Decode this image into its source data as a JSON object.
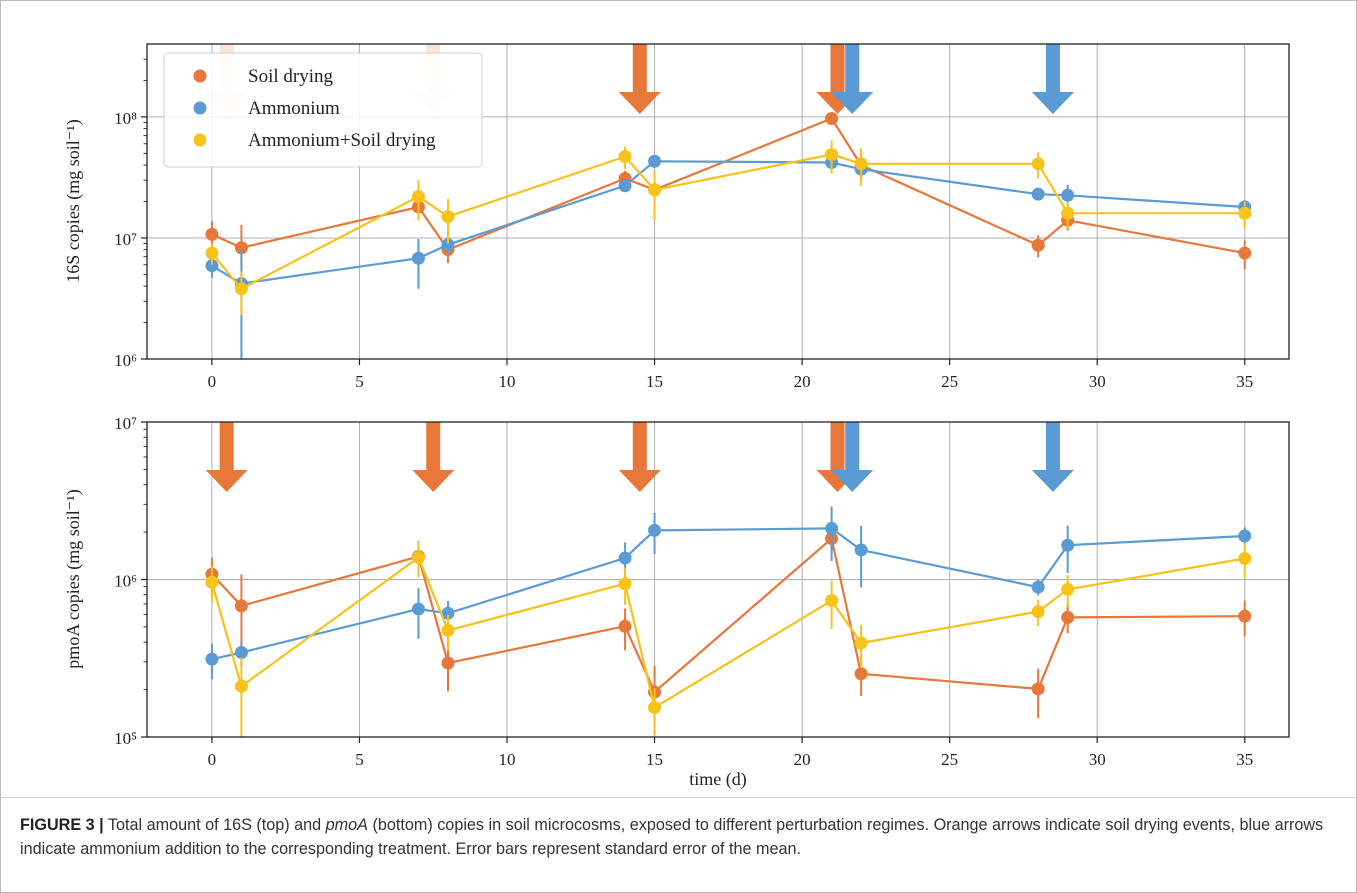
{
  "colors": {
    "soil_drying": "#e8773a",
    "ammonium": "#5b9bd5",
    "ammonium_soil_drying": "#f7c21a",
    "arrow_orange": "#e8773a",
    "arrow_blue": "#5b9bd5",
    "grid": "#b0b0b0"
  },
  "caption": {
    "label": "FIGURE 3 |",
    "text_1": " Total amount of 16S (top) and ",
    "italic_1": "pmoA",
    "text_2": " (bottom) copies in soil microcosms, exposed to different perturbation regimes. Orange arrows indicate soil drying events, blue arrows indicate ammonium addition to the corresponding treatment. Error bars represent standard error of the mean."
  },
  "chart_data": [
    {
      "type": "line",
      "panel": "top",
      "ylabel": "16S copies (mg soil⁻¹)",
      "xlabel": "",
      "y_scale": "log",
      "ylim": [
        1000000,
        400000000
      ],
      "xlim": [
        -2.2,
        36.5
      ],
      "x_ticks": [
        0,
        5,
        10,
        15,
        20,
        25,
        30,
        35
      ],
      "y_ticks": [
        1000000,
        10000000,
        100000000
      ],
      "y_tick_labels": [
        "10⁶",
        "10⁷",
        "10⁸"
      ],
      "grid": true,
      "legend_position": "top-left",
      "arrows": [
        {
          "x": 0.5,
          "color": "orange",
          "faded": true
        },
        {
          "x": 7.5,
          "color": "orange",
          "faded": true
        },
        {
          "x": 14.5,
          "color": "orange",
          "faded": false
        },
        {
          "x": 21.2,
          "color": "orange",
          "faded": false
        },
        {
          "x": 21.7,
          "color": "blue",
          "faded": false
        },
        {
          "x": 28.5,
          "color": "blue",
          "faded": false
        }
      ],
      "series": [
        {
          "name": "Soil drying",
          "color_key": "soil_drying",
          "x": [
            0,
            1,
            7,
            8,
            14,
            15,
            21,
            22,
            28,
            29,
            35
          ],
          "y": [
            10700000,
            8300000,
            18000000,
            8000000,
            31000000,
            25000000,
            97000000,
            40000000,
            8700000,
            14000000,
            7500000
          ],
          "err": [
            3000000,
            4500000,
            4000000,
            1800000,
            5000000,
            5000000,
            8000000,
            10000000,
            1800000,
            2500000,
            2000000
          ]
        },
        {
          "name": "Ammonium",
          "color_key": "ammonium",
          "x": [
            0,
            1,
            7,
            8,
            14,
            15,
            21,
            22,
            28,
            29,
            35
          ],
          "y": [
            5900000,
            4200000,
            6800000,
            8800000,
            27000000,
            43000000,
            42000000,
            37000000,
            23000000,
            22500000,
            18000000
          ],
          "err": [
            1200000,
            3800000,
            3000000,
            1500000,
            3000000,
            4000000,
            5000000,
            7000000,
            2000000,
            5000000,
            2500000
          ]
        },
        {
          "name": "Ammonium+Soil drying",
          "color_key": "ammonium_soil_drying",
          "x": [
            0,
            1,
            7,
            8,
            14,
            15,
            21,
            22,
            28,
            29,
            35
          ],
          "y": [
            7500000,
            3800000,
            22000000,
            15000000,
            47000000,
            25000000,
            49000000,
            41000000,
            41000000,
            16000000,
            16000000
          ],
          "err": [
            1500000,
            1500000,
            8000000,
            6000000,
            10000000,
            11000000,
            15000000,
            14000000,
            10000000,
            4000000,
            4000000
          ]
        }
      ]
    },
    {
      "type": "line",
      "panel": "bottom",
      "ylabel": "pmoA copies (mg soil⁻¹)",
      "xlabel": "time (d)",
      "y_scale": "log",
      "ylim": [
        100000,
        10000000
      ],
      "xlim": [
        -2.2,
        36.5
      ],
      "x_ticks": [
        0,
        5,
        10,
        15,
        20,
        25,
        30,
        35
      ],
      "x_tick_labels": [
        "0",
        "5",
        "10",
        "15",
        "20",
        "25",
        "30",
        "35"
      ],
      "y_ticks": [
        100000,
        1000000,
        10000000
      ],
      "y_tick_labels": [
        "10⁵",
        "10⁶",
        "10⁷"
      ],
      "grid": true,
      "arrows": [
        {
          "x": 0.5,
          "color": "orange",
          "faded": false
        },
        {
          "x": 7.5,
          "color": "orange",
          "faded": false
        },
        {
          "x": 14.5,
          "color": "orange",
          "faded": false
        },
        {
          "x": 21.2,
          "color": "orange",
          "faded": false
        },
        {
          "x": 21.7,
          "color": "blue",
          "faded": false
        },
        {
          "x": 28.5,
          "color": "blue",
          "faded": false
        }
      ],
      "series": [
        {
          "name": "Soil drying",
          "color_key": "soil_drying",
          "x": [
            0,
            1,
            7,
            8,
            14,
            15,
            21,
            22,
            28,
            29,
            35
          ],
          "y": [
            1080000,
            680000,
            1400000,
            295000,
            505000,
            193000,
            1820000,
            252000,
            202000,
            575000,
            585000
          ],
          "err": [
            300000,
            400000,
            350000,
            100000,
            150000,
            90000,
            300000,
            70000,
            70000,
            120000,
            150000
          ]
        },
        {
          "name": "Ammonium",
          "color_key": "ammonium",
          "x": [
            0,
            1,
            7,
            8,
            14,
            15,
            21,
            22,
            28,
            29,
            35
          ],
          "y": [
            312000,
            344000,
            650000,
            610000,
            1370000,
            2050000,
            2110000,
            1540000,
            895000,
            1650000,
            1890000
          ],
          "err": [
            80000,
            60000,
            230000,
            120000,
            350000,
            600000,
            800000,
            650000,
            100000,
            550000,
            250000
          ]
        },
        {
          "name": "Ammonium+Soil drying",
          "color_key": "ammonium_soil_drying",
          "x": [
            0,
            1,
            7,
            8,
            14,
            15,
            21,
            22,
            28,
            29,
            35
          ],
          "y": [
            960000,
            210000,
            1380000,
            475000,
            940000,
            154000,
            735000,
            395000,
            625000,
            865000,
            1360000
          ],
          "err": [
            250000,
            110000,
            350000,
            120000,
            250000,
            50000,
            250000,
            120000,
            120000,
            200000,
            350000
          ]
        }
      ]
    }
  ]
}
